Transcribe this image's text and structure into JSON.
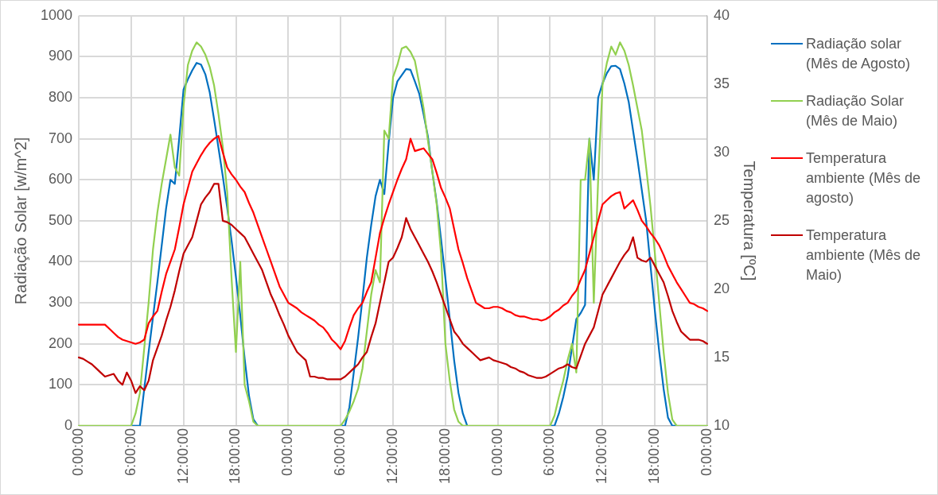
{
  "chart_data": {
    "type": "line",
    "ylabel": "Radiação Solar [w/m^2]",
    "y2label": "Temperatura [ºC]",
    "categories": [
      "0:00:00",
      null,
      null,
      null,
      null,
      null,
      null,
      null,
      null,
      null,
      null,
      null,
      "6:00:00",
      null,
      null,
      null,
      null,
      null,
      null,
      null,
      null,
      null,
      null,
      null,
      "12:00:00",
      null,
      null,
      null,
      null,
      null,
      null,
      null,
      null,
      null,
      null,
      null,
      "18:00:00",
      null,
      null,
      null,
      null,
      null,
      null,
      null,
      null,
      null,
      null,
      null,
      "0:00:00",
      null,
      null,
      null,
      null,
      null,
      null,
      null,
      null,
      null,
      null,
      null,
      "6:00:00",
      null,
      null,
      null,
      null,
      null,
      null,
      null,
      null,
      null,
      null,
      null,
      "12:00:00",
      null,
      null,
      null,
      null,
      null,
      null,
      null,
      null,
      null,
      null,
      null,
      "18:00:00",
      null,
      null,
      null,
      null,
      null,
      null,
      null,
      null,
      null,
      null,
      null,
      "0:00:00",
      null,
      null,
      null,
      null,
      null,
      null,
      null,
      null,
      null,
      null,
      null,
      "6:00:00",
      null,
      null,
      null,
      null,
      null,
      null,
      null,
      null,
      null,
      null,
      null,
      "12:00:00",
      null,
      null,
      null,
      null,
      null,
      null,
      null,
      null,
      null,
      null,
      null,
      "18:00:00",
      null,
      null,
      null,
      null,
      null,
      null,
      null,
      null,
      null,
      null,
      null,
      "0:00:00"
    ],
    "ylim": [
      0,
      1000
    ],
    "yticks": [
      0,
      100,
      200,
      300,
      400,
      500,
      600,
      700,
      800,
      900,
      1000
    ],
    "y2lim": [
      10,
      40
    ],
    "y2ticks": [
      10,
      15,
      20,
      25,
      30,
      35,
      40
    ],
    "grid": true,
    "legend": "right",
    "marker": "none",
    "line_style": "solid",
    "series": [
      {
        "name": "Radiação solar (Mês de Agosto)",
        "color": "#0070c0",
        "values": [
          null,
          null,
          null,
          null,
          null,
          null,
          null,
          null,
          null,
          null,
          null,
          null,
          0,
          0,
          0,
          90,
          180,
          265,
          350,
          440,
          530,
          600,
          590,
          700,
          820,
          845,
          867,
          885,
          881,
          857,
          813,
          747,
          678,
          608,
          532,
          452,
          363,
          269,
          164,
          73,
          16,
          0,
          null,
          null,
          null,
          null,
          null,
          null,
          null,
          null,
          null,
          null,
          null,
          null,
          null,
          null,
          null,
          null,
          null,
          null,
          0,
          0,
          45,
          130,
          215,
          310,
          410,
          490,
          560,
          600,
          565,
          690,
          800,
          840,
          855,
          870,
          868,
          840,
          810,
          760,
          705,
          620,
          545,
          455,
          360,
          260,
          160,
          80,
          30,
          0,
          null,
          null,
          null,
          null,
          null,
          null,
          null,
          null,
          null,
          null,
          null,
          null,
          null,
          null,
          null,
          null,
          null,
          null,
          0,
          0,
          30,
          70,
          120,
          190,
          260,
          275,
          295,
          700,
          600,
          800,
          835,
          860,
          877,
          878,
          870,
          835,
          790,
          720,
          650,
          575,
          500,
          390,
          280,
          180,
          90,
          20,
          0,
          0,
          null,
          null,
          null,
          null,
          null,
          null,
          null
        ]
      },
      {
        "name": "Radiação Solar (Mês de Maio)",
        "color": "#92d050",
        "values": [
          0,
          0,
          0,
          0,
          0,
          0,
          0,
          0,
          0,
          0,
          0,
          0,
          0,
          30,
          80,
          190,
          300,
          430,
          520,
          590,
          650,
          710,
          630,
          610,
          780,
          880,
          915,
          935,
          925,
          905,
          875,
          830,
          760,
          680,
          570,
          360,
          180,
          400,
          100,
          60,
          10,
          0,
          0,
          0,
          0,
          0,
          0,
          0,
          0,
          0,
          0,
          0,
          0,
          0,
          0,
          0,
          0,
          0,
          0,
          0,
          0,
          15,
          35,
          60,
          90,
          140,
          230,
          320,
          380,
          350,
          720,
          700,
          850,
          880,
          920,
          925,
          912,
          890,
          835,
          775,
          695,
          620,
          540,
          420,
          200,
          110,
          40,
          10,
          0,
          0,
          0,
          0,
          0,
          0,
          0,
          0,
          0,
          0,
          0,
          0,
          0,
          0,
          0,
          0,
          0,
          0,
          0,
          0,
          0,
          25,
          70,
          110,
          160,
          200,
          130,
          600,
          600,
          700,
          300,
          600,
          830,
          885,
          925,
          905,
          935,
          915,
          880,
          830,
          775,
          720,
          630,
          535,
          420,
          300,
          180,
          80,
          15,
          0,
          0,
          0,
          0,
          0,
          0,
          0,
          0
        ]
      },
      {
        "name": "Temperatura ambiente (Mês de agosto)",
        "color": "#ff0000",
        "axis": "y2",
        "values": [
          17.4,
          17.4,
          17.4,
          17.4,
          17.4,
          17.4,
          17.4,
          17.1,
          16.8,
          16.5,
          16.3,
          16.2,
          16.1,
          16,
          16.1,
          16.3,
          17.5,
          18,
          18.4,
          19.8,
          21.1,
          22,
          22.9,
          24.5,
          26.2,
          27.4,
          28.6,
          29.2,
          29.8,
          30.3,
          30.7,
          31,
          31.2,
          30,
          28.9,
          28.4,
          28,
          27.5,
          27.1,
          26.3,
          25.6,
          24.7,
          23.8,
          22.9,
          22,
          21.1,
          20.2,
          19.6,
          19,
          18.8,
          18.6,
          18.3,
          18.1,
          17.9,
          17.7,
          17.4,
          17.2,
          16.8,
          16.3,
          16,
          15.6,
          16.2,
          17.2,
          18.1,
          18.6,
          19,
          19.8,
          20.5,
          22.3,
          24.1,
          25.2,
          26.2,
          27.1,
          28,
          28.8,
          29.5,
          31,
          30.1,
          30.2,
          30.3,
          29.9,
          29.5,
          28.5,
          27.4,
          26.7,
          25.9,
          24.4,
          22.9,
          21.9,
          20.8,
          19.9,
          19,
          18.8,
          18.6,
          18.6,
          18.7,
          18.7,
          18.6,
          18.4,
          18.3,
          18.1,
          18,
          18,
          17.9,
          17.8,
          17.8,
          17.7,
          17.8,
          18,
          18.3,
          18.5,
          18.8,
          19,
          19.5,
          19.9,
          20.7,
          21.4,
          22.6,
          23.8,
          25,
          26.2,
          26.5,
          26.8,
          27,
          27.1,
          25.9,
          26.2,
          26.5,
          25.8,
          25,
          24.6,
          24.1,
          23.7,
          23.2,
          22.5,
          21.7,
          21.1,
          20.5,
          20,
          19.5,
          19,
          18.9,
          18.7,
          18.6,
          18.4
        ]
      },
      {
        "name": "Temperatura ambiente (Mês de Maio)",
        "color": "#c00000",
        "axis": "y2",
        "values": [
          15,
          14.9,
          14.7,
          14.5,
          14.2,
          13.9,
          13.6,
          13.7,
          13.8,
          13.3,
          13,
          13.9,
          13.3,
          12.4,
          12.9,
          12.6,
          13.3,
          14.8,
          15.7,
          16.6,
          17.7,
          18.7,
          19.9,
          21.3,
          22.6,
          23.2,
          23.8,
          25,
          26.2,
          26.7,
          27.1,
          27.7,
          27.7,
          25,
          24.9,
          24.7,
          24.4,
          24.1,
          23.8,
          23.2,
          22.6,
          22,
          21.4,
          20.5,
          19.6,
          18.9,
          18.1,
          17.4,
          16.6,
          16,
          15.4,
          15.1,
          14.8,
          13.6,
          13.6,
          13.5,
          13.5,
          13.4,
          13.4,
          13.4,
          13.4,
          13.6,
          13.9,
          14.2,
          14.5,
          15,
          15.4,
          16.5,
          17.5,
          19,
          20.5,
          22,
          22.3,
          23,
          23.8,
          25.2,
          24.4,
          23.8,
          23.2,
          22.6,
          22,
          21.3,
          20.5,
          19.6,
          18.7,
          17.8,
          16.9,
          16.5,
          16,
          15.7,
          15.4,
          15.1,
          14.8,
          14.9,
          15,
          14.8,
          14.7,
          14.6,
          14.5,
          14.3,
          14.2,
          14,
          13.9,
          13.7,
          13.6,
          13.5,
          13.5,
          13.6,
          13.8,
          14,
          14.2,
          14.3,
          14.5,
          14.3,
          14.2,
          15.1,
          16,
          16.6,
          17.2,
          18.4,
          19.6,
          20.2,
          20.8,
          21.4,
          22,
          22.5,
          22.9,
          23.8,
          22.3,
          22.1,
          22,
          22.3,
          21.7,
          21.1,
          20.5,
          19.5,
          18.4,
          17.6,
          16.9,
          16.6,
          16.3,
          16.3,
          16.3,
          16.2,
          16
        ]
      }
    ]
  }
}
